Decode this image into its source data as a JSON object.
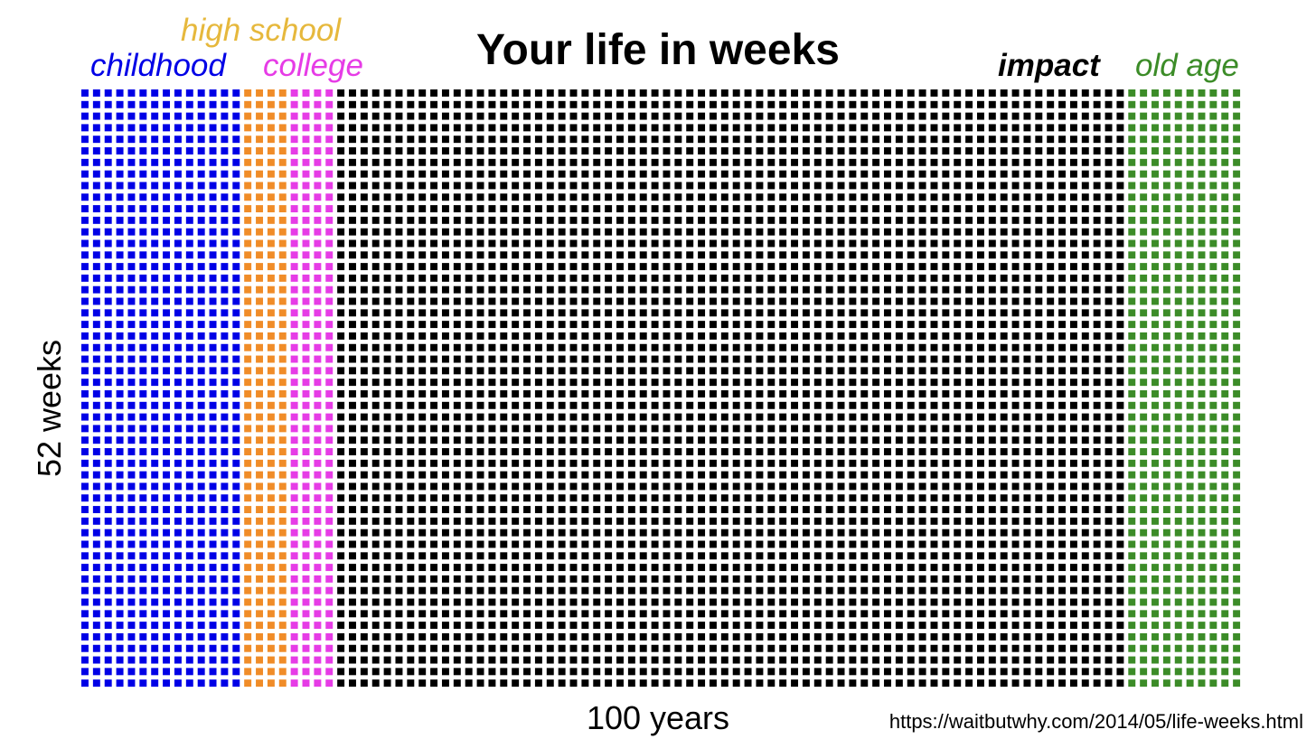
{
  "chart_data": {
    "type": "heatmap",
    "title": "Your life in weeks",
    "xlabel": "100 years",
    "ylabel": "52 weeks",
    "columns": 100,
    "rows": 52,
    "segments": [
      {
        "name": "childhood",
        "start_year": 0,
        "end_year": 14,
        "color": "#0000e6"
      },
      {
        "name": "high school",
        "start_year": 14,
        "end_year": 18,
        "color": "#f08c28"
      },
      {
        "name": "college",
        "start_year": 18,
        "end_year": 22,
        "color": "#e63ce6"
      },
      {
        "name": "impact",
        "start_year": 22,
        "end_year": 90,
        "color": "#000000"
      },
      {
        "name": "old age",
        "start_year": 90,
        "end_year": 100,
        "color": "#3c8c28"
      }
    ],
    "label_colors": {
      "high_school": "#e6b83c"
    }
  },
  "source": "https://waitbutwhy.com/2014/05/life-weeks.html"
}
